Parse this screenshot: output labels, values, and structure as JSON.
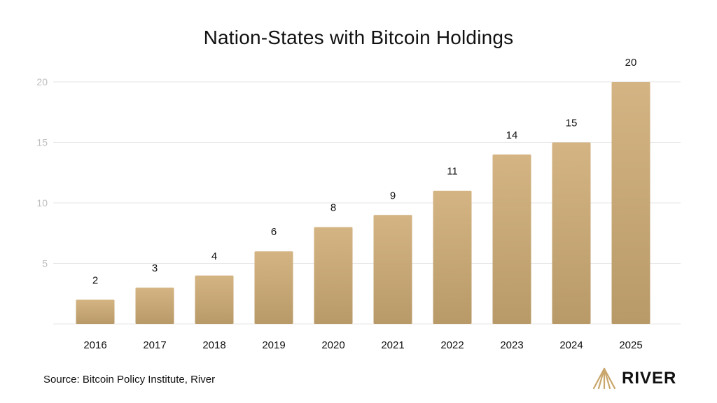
{
  "title": "Nation-States with Bitcoin Holdings",
  "source": "Source: Bitcoin Policy Institute, River",
  "brand": {
    "name": "RIVER",
    "logo_icon": "river-logo-icon",
    "logo_color": "#C9A66B"
  },
  "colors": {
    "bar_top": "#D4B483",
    "bar_bottom": "#B89A68",
    "grid": "#E6E6E6",
    "tick": "#BDBDBD",
    "text": "#111111"
  },
  "chart_data": {
    "type": "bar",
    "title": "Nation-States with Bitcoin Holdings",
    "xlabel": "",
    "ylabel": "",
    "categories": [
      "2016",
      "2017",
      "2018",
      "2019",
      "2020",
      "2021",
      "2022",
      "2023",
      "2024",
      "2025"
    ],
    "values": [
      2,
      3,
      4,
      6,
      8,
      9,
      11,
      14,
      15,
      20
    ],
    "ylim": [
      0,
      20
    ],
    "yticks": [
      5,
      10,
      15,
      20
    ],
    "grid": true,
    "data_labels": true,
    "legend": "none"
  }
}
